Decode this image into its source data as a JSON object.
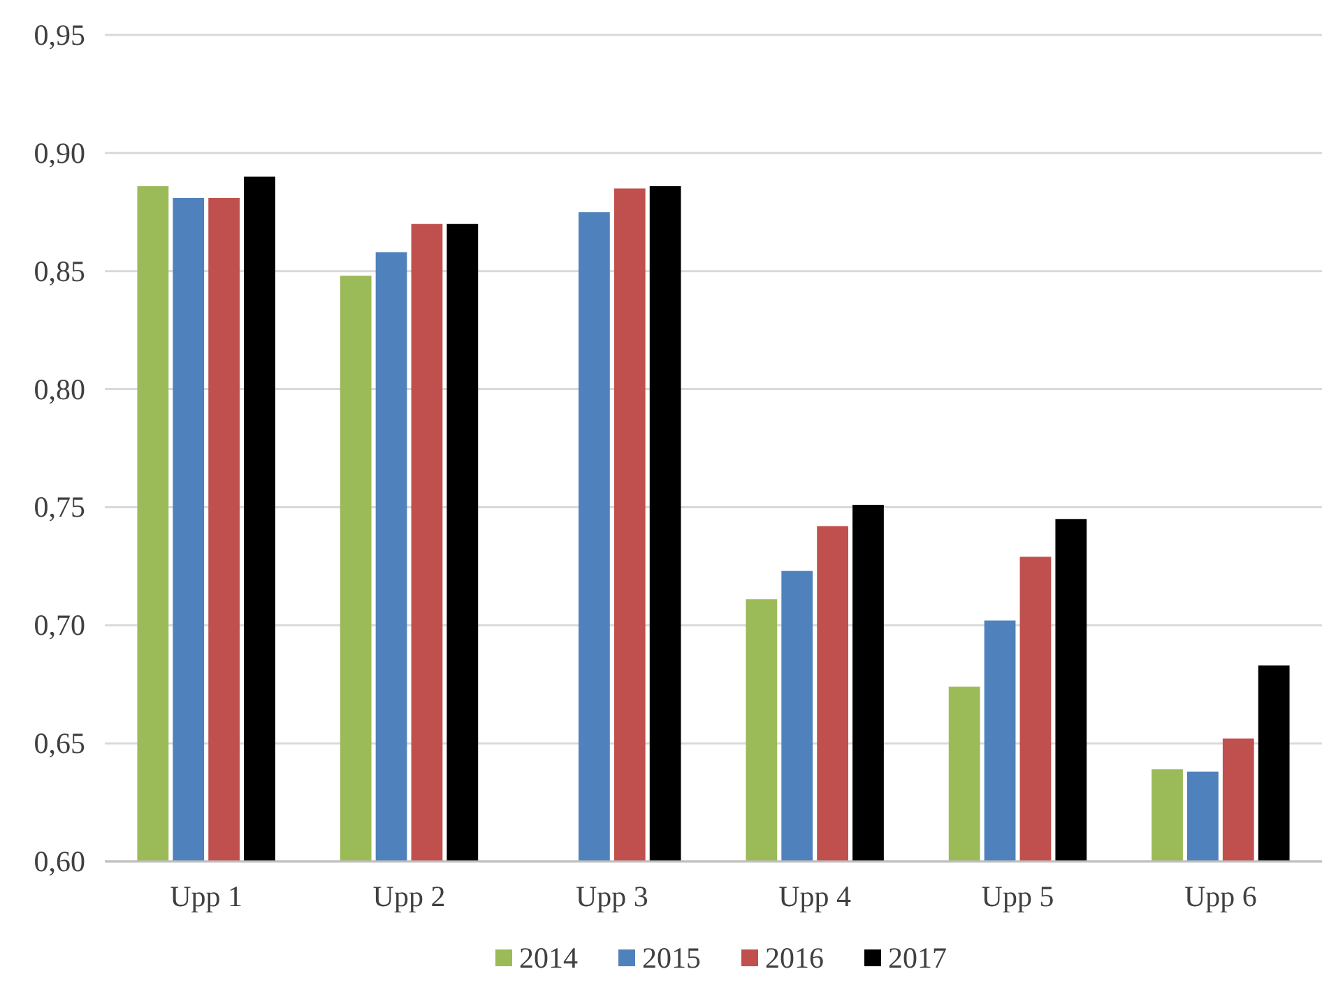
{
  "chart_data": {
    "type": "bar",
    "categories": [
      "Upp 1",
      "Upp 2",
      "Upp 3",
      "Upp 4",
      "Upp 5",
      "Upp 6"
    ],
    "series": [
      {
        "name": "2014",
        "color": "#9bbb59",
        "values": [
          0.886,
          0.848,
          null,
          0.711,
          0.674,
          0.639
        ]
      },
      {
        "name": "2015",
        "color": "#4f81bd",
        "values": [
          0.881,
          0.858,
          0.875,
          0.723,
          0.702,
          0.638
        ]
      },
      {
        "name": "2016",
        "color": "#c0504d",
        "values": [
          0.881,
          0.87,
          0.885,
          0.742,
          0.729,
          0.652
        ]
      },
      {
        "name": "2017",
        "color": "#000000",
        "values": [
          0.89,
          0.87,
          0.886,
          0.751,
          0.745,
          0.683
        ]
      }
    ],
    "ylim": [
      0.6,
      0.95
    ],
    "yticks": [
      {
        "value": 0.6,
        "label": "0,60"
      },
      {
        "value": 0.65,
        "label": "0,65"
      },
      {
        "value": 0.7,
        "label": "0,70"
      },
      {
        "value": 0.75,
        "label": "0,75"
      },
      {
        "value": 0.8,
        "label": "0,80"
      },
      {
        "value": 0.85,
        "label": "0,85"
      },
      {
        "value": 0.9,
        "label": "0,90"
      },
      {
        "value": 0.95,
        "label": "0,95"
      }
    ],
    "grid": "y",
    "legend": "bottom"
  }
}
